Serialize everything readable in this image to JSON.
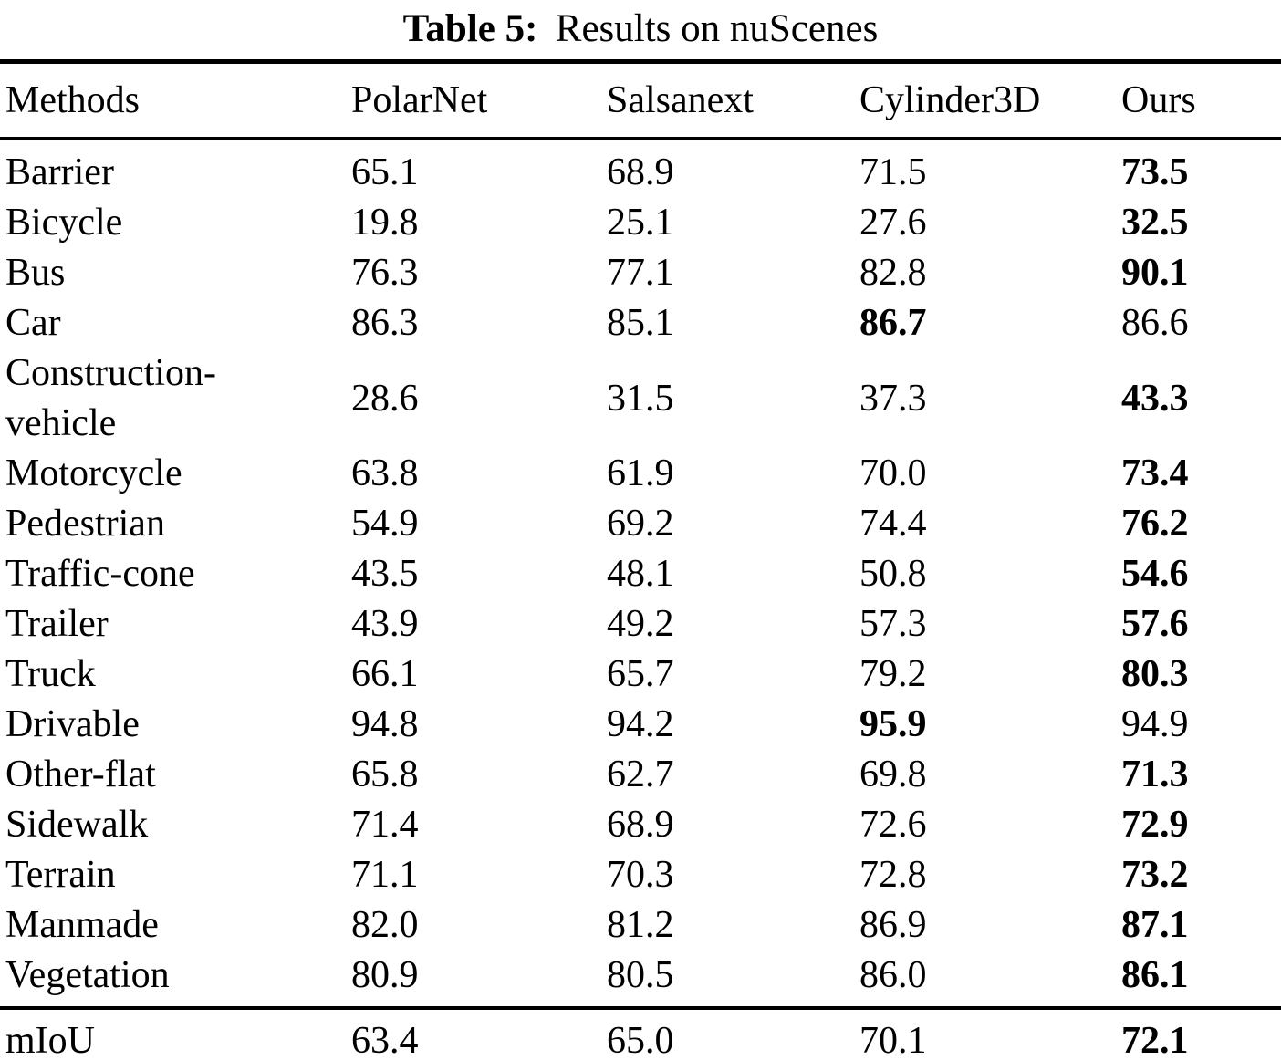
{
  "title": {
    "prefix": "Table 5:",
    "text": "Results on nuScenes"
  },
  "table": {
    "columns": [
      "Methods",
      "PolarNet",
      "Salsanext",
      "Cylinder3D",
      "Ours"
    ],
    "rows": [
      {
        "method": "Barrier",
        "values": [
          "65.1",
          "68.9",
          "71.5",
          "73.5"
        ],
        "bold_col": 3
      },
      {
        "method": "Bicycle",
        "values": [
          "19.8",
          "25.1",
          "27.6",
          "32.5"
        ],
        "bold_col": 3
      },
      {
        "method": "Bus",
        "values": [
          "76.3",
          "77.1",
          "82.8",
          "90.1"
        ],
        "bold_col": 3
      },
      {
        "method": "Car",
        "values": [
          "86.3",
          "85.1",
          "86.7",
          "86.6"
        ],
        "bold_col": 2
      },
      {
        "method": "Construction-vehicle",
        "values": [
          "28.6",
          "31.5",
          "37.3",
          "43.3"
        ],
        "bold_col": 3
      },
      {
        "method": "Motorcycle",
        "values": [
          "63.8",
          "61.9",
          "70.0",
          "73.4"
        ],
        "bold_col": 3
      },
      {
        "method": "Pedestrian",
        "values": [
          "54.9",
          "69.2",
          "74.4",
          "76.2"
        ],
        "bold_col": 3
      },
      {
        "method": "Traffic-cone",
        "values": [
          "43.5",
          "48.1",
          "50.8",
          "54.6"
        ],
        "bold_col": 3
      },
      {
        "method": "Trailer",
        "values": [
          "43.9",
          "49.2",
          "57.3",
          "57.6"
        ],
        "bold_col": 3
      },
      {
        "method": "Truck",
        "values": [
          "66.1",
          "65.7",
          "79.2",
          "80.3"
        ],
        "bold_col": 3
      },
      {
        "method": "Drivable",
        "values": [
          "94.8",
          "94.2",
          "95.9",
          "94.9"
        ],
        "bold_col": 2
      },
      {
        "method": "Other-flat",
        "values": [
          "65.8",
          "62.7",
          "69.8",
          "71.3"
        ],
        "bold_col": 3
      },
      {
        "method": "Sidewalk",
        "values": [
          "71.4",
          "68.9",
          "72.6",
          "72.9"
        ],
        "bold_col": 3
      },
      {
        "method": "Terrain",
        "values": [
          "71.1",
          "70.3",
          "72.8",
          "73.2"
        ],
        "bold_col": 3
      },
      {
        "method": "Manmade",
        "values": [
          "82.0",
          "81.2",
          "86.9",
          "87.1"
        ],
        "bold_col": 3
      },
      {
        "method": "Vegetation",
        "values": [
          "80.9",
          "80.5",
          "86.0",
          "86.1"
        ],
        "bold_col": 3
      }
    ],
    "summary_row": {
      "method": "mIoU",
      "values": [
        "63.4",
        "65.0",
        "70.1",
        "72.1"
      ],
      "bold_col": 3
    }
  },
  "colors": {
    "text": "#000000",
    "background": "#ffffff",
    "rule": "#000000"
  }
}
